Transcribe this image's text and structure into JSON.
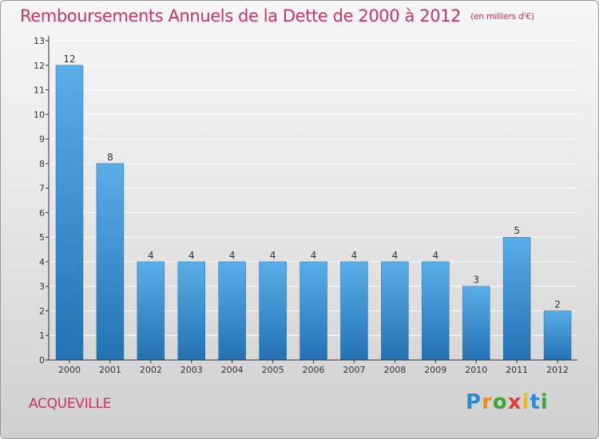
{
  "title": "Remboursements Annuels de la Dette de 2000 à 2012",
  "unit": "(en milliers d'€)",
  "commune": "ACQUEVILLE",
  "logo": {
    "letters": [
      "P",
      "r",
      "o",
      "x",
      "i",
      "t",
      "i"
    ],
    "colors": [
      "#2a8bd6",
      "#f08a1c",
      "#3aa63a",
      "#e23b3b",
      "#f0b81c",
      "#2a8bd6",
      "#3aa63a"
    ]
  },
  "colors": {
    "bar_top": "#5aaee8",
    "bar_bottom": "#2471b3",
    "axis": "#333333",
    "grid": "#ffffff",
    "title": "#cc3366"
  },
  "chart_data": {
    "type": "bar",
    "categories": [
      "2000",
      "2001",
      "2002",
      "2003",
      "2004",
      "2005",
      "2006",
      "2007",
      "2008",
      "2009",
      "2010",
      "2011",
      "2012"
    ],
    "values": [
      12,
      8,
      4,
      4,
      4,
      4,
      4,
      4,
      4,
      4,
      3,
      5,
      2
    ],
    "data_labels": [
      "12",
      "8",
      "4",
      "4",
      "4",
      "4",
      "4",
      "4",
      "4",
      "4",
      "3",
      "5",
      "2"
    ],
    "yticks": [
      "0",
      "1",
      "2",
      "3",
      "4",
      "5",
      "6",
      "7",
      "8",
      "9",
      "10",
      "11",
      "12",
      "13"
    ],
    "ylim": [
      0,
      13
    ],
    "grid": true,
    "legend": "none"
  }
}
